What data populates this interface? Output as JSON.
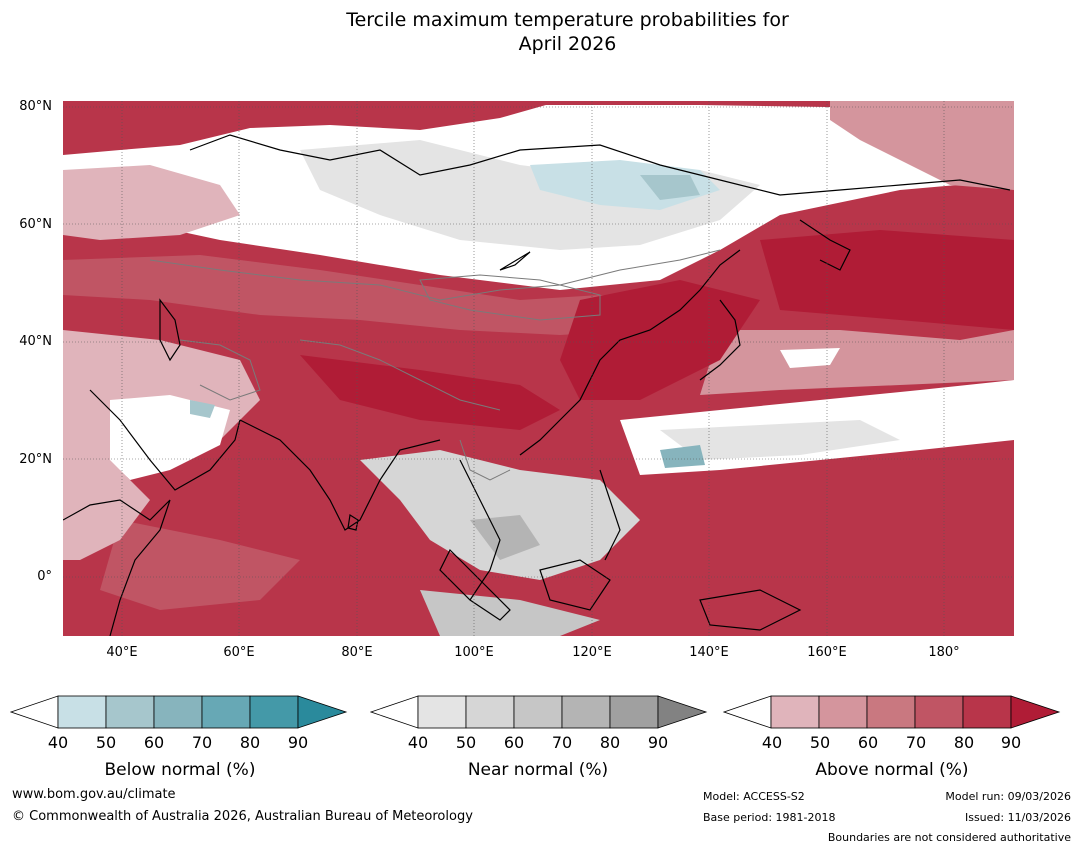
{
  "title_line1": "Tercile maximum temperature probabilities for",
  "title_line2": "April 2026",
  "map": {
    "lat_labels": [
      "80°N",
      "60°N",
      "40°N",
      "20°N",
      "0°"
    ],
    "lon_labels": [
      "40°E",
      "60°E",
      "80°E",
      "100°E",
      "120°E",
      "140°E",
      "160°E",
      "180°"
    ],
    "extent": {
      "lon": [
        30,
        192
      ],
      "lat": [
        -10,
        80
      ]
    }
  },
  "colorbars": [
    {
      "title": "Below normal (%)",
      "ticks": [
        "40",
        "50",
        "60",
        "70",
        "80",
        "90"
      ],
      "colors": [
        "#ffffff",
        "#c8e0e6",
        "#a6c6cc",
        "#87b4bd",
        "#67a8b5",
        "#4499a8",
        "#2a8a9c"
      ]
    },
    {
      "title": "Near normal (%)",
      "ticks": [
        "40",
        "50",
        "60",
        "70",
        "80",
        "90"
      ],
      "colors": [
        "#ffffff",
        "#e4e4e4",
        "#d6d6d6",
        "#c6c6c6",
        "#b4b4b4",
        "#a0a0a0",
        "#828282"
      ]
    },
    {
      "title": "Above normal (%)",
      "ticks": [
        "40",
        "50",
        "60",
        "70",
        "80",
        "90"
      ],
      "colors": [
        "#ffffff",
        "#e0b4bb",
        "#d4959d",
        "#c97880",
        "#c05564",
        "#b8354a",
        "#b01c36"
      ]
    }
  ],
  "footer": {
    "website": "www.bom.gov.au/climate",
    "copyright": "© Commonwealth of Australia 2026, Australian Bureau of Meteorology",
    "model": "Model: ACCESS-S2",
    "base_period": "Base period: 1981-2018",
    "model_run": "Model run: 09/03/2026",
    "issued": "Issued: 11/03/2026",
    "disclaimer": "Boundaries are not considered authoritative"
  }
}
